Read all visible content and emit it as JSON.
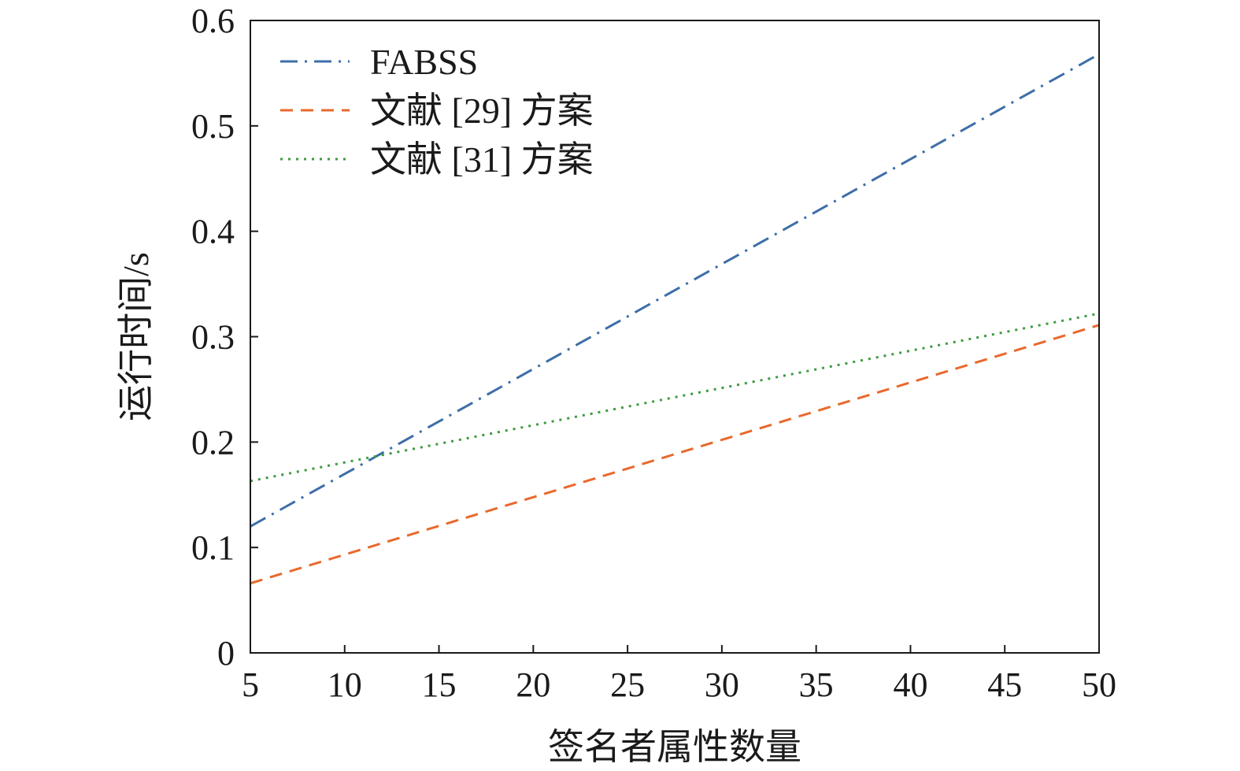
{
  "chart_data": {
    "type": "line",
    "title": "",
    "xlabel": "签名者属性数量",
    "ylabel": "运行时间/s",
    "xlim": [
      5,
      50
    ],
    "ylim": [
      0,
      0.6
    ],
    "xticks": [
      5,
      10,
      15,
      20,
      25,
      30,
      35,
      40,
      45,
      50
    ],
    "yticks": [
      0,
      0.1,
      0.2,
      0.3,
      0.4,
      0.5,
      0.6
    ],
    "xtick_labels": [
      "5",
      "10",
      "15",
      "20",
      "25",
      "30",
      "35",
      "40",
      "45",
      "50"
    ],
    "ytick_labels": [
      "0",
      "0.1",
      "0.2",
      "0.3",
      "0.4",
      "0.5",
      "0.6"
    ],
    "grid": false,
    "legend_position": "top-left",
    "series": [
      {
        "name": "FABSS",
        "color": "#3d6ea8",
        "dash": "dash-dot",
        "x": [
          5,
          50
        ],
        "y": [
          0.12,
          0.568
        ]
      },
      {
        "name": "文献 [29] 方案",
        "color": "#e8692d",
        "dash": "dashed",
        "x": [
          5,
          50
        ],
        "y": [
          0.066,
          0.311
        ]
      },
      {
        "name": "文献 [31] 方案",
        "color": "#3e9b3e",
        "dash": "dotted",
        "x": [
          5,
          50
        ],
        "y": [
          0.163,
          0.322
        ]
      }
    ]
  }
}
